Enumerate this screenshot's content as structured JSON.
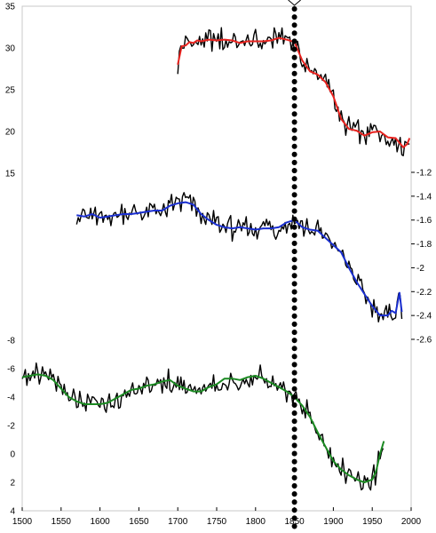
{
  "chart_data": [
    {
      "type": "line",
      "title": "",
      "xlabel": "",
      "ylabel": "",
      "xlim": [
        1500,
        2000
      ],
      "ylim": [
        15,
        35
      ],
      "y_axis_side": "left",
      "y_ticks": [
        15,
        20,
        25,
        30,
        35
      ],
      "y_tick_labels": [
        "15",
        "20",
        "25",
        "30",
        "35"
      ],
      "color": "#e8231f",
      "series": [
        {
          "values": [
            [
              1700,
              28.0
            ],
            [
              1705,
              30.2
            ],
            [
              1710,
              30.3
            ],
            [
              1715,
              30.7
            ],
            [
              1720,
              30.6
            ],
            [
              1725,
              30.9
            ],
            [
              1730,
              30.8
            ],
            [
              1740,
              31.0
            ],
            [
              1750,
              30.9
            ],
            [
              1760,
              31.0
            ],
            [
              1770,
              30.9
            ],
            [
              1780,
              30.6
            ],
            [
              1790,
              30.8
            ],
            [
              1800,
              30.8
            ],
            [
              1810,
              30.8
            ],
            [
              1820,
              30.9
            ],
            [
              1830,
              31.2
            ],
            [
              1840,
              31.0
            ],
            [
              1850,
              30.7
            ],
            [
              1860,
              28.5
            ],
            [
              1870,
              27.2
            ],
            [
              1880,
              26.8
            ],
            [
              1890,
              25.9
            ],
            [
              1900,
              24.2
            ],
            [
              1910,
              21.5
            ],
            [
              1920,
              20.3
            ],
            [
              1930,
              20.1
            ],
            [
              1940,
              19.5
            ],
            [
              1950,
              19.9
            ],
            [
              1960,
              20.0
            ],
            [
              1970,
              19.3
            ],
            [
              1980,
              19.2
            ],
            [
              1990,
              18.1
            ],
            [
              1995,
              18.5
            ],
            [
              1998,
              19.2
            ]
          ]
        }
      ]
    },
    {
      "type": "line",
      "title": "",
      "xlabel": "",
      "ylabel": "",
      "xlim": [
        1500,
        2000
      ],
      "ylim": [
        -2.6,
        -1.2
      ],
      "y_axis_side": "right",
      "y_ticks": [
        -1.2,
        -1.4,
        -1.6,
        -1.8,
        -2.0,
        -2.2,
        -2.4,
        -2.6
      ],
      "y_tick_labels": [
        "-1.2",
        "-1.4",
        "-1.6",
        "-1.8",
        "-2",
        "-2.2",
        "-2.4",
        "-2.6"
      ],
      "color": "#1a2fd0",
      "series": [
        {
          "values": [
            [
              1570,
              -1.56
            ],
            [
              1580,
              -1.57
            ],
            [
              1590,
              -1.55
            ],
            [
              1600,
              -1.58
            ],
            [
              1610,
              -1.57
            ],
            [
              1620,
              -1.56
            ],
            [
              1630,
              -1.55
            ],
            [
              1640,
              -1.55
            ],
            [
              1650,
              -1.54
            ],
            [
              1660,
              -1.53
            ],
            [
              1670,
              -1.52
            ],
            [
              1680,
              -1.52
            ],
            [
              1690,
              -1.48
            ],
            [
              1700,
              -1.46
            ],
            [
              1710,
              -1.45
            ],
            [
              1720,
              -1.47
            ],
            [
              1730,
              -1.55
            ],
            [
              1740,
              -1.6
            ],
            [
              1750,
              -1.64
            ],
            [
              1760,
              -1.66
            ],
            [
              1770,
              -1.67
            ],
            [
              1780,
              -1.66
            ],
            [
              1790,
              -1.67
            ],
            [
              1800,
              -1.68
            ],
            [
              1810,
              -1.67
            ],
            [
              1820,
              -1.67
            ],
            [
              1830,
              -1.66
            ],
            [
              1840,
              -1.62
            ],
            [
              1850,
              -1.6
            ],
            [
              1860,
              -1.66
            ],
            [
              1870,
              -1.68
            ],
            [
              1880,
              -1.69
            ],
            [
              1890,
              -1.75
            ],
            [
              1900,
              -1.81
            ],
            [
              1910,
              -1.87
            ],
            [
              1920,
              -2.0
            ],
            [
              1930,
              -2.12
            ],
            [
              1940,
              -2.22
            ],
            [
              1950,
              -2.32
            ],
            [
              1960,
              -2.4
            ],
            [
              1970,
              -2.4
            ],
            [
              1975,
              -2.36
            ],
            [
              1980,
              -2.38
            ],
            [
              1985,
              -2.21
            ],
            [
              1988,
              -2.37
            ]
          ]
        }
      ]
    },
    {
      "type": "line",
      "title": "",
      "xlabel": "",
      "ylabel": "",
      "xlim": [
        1500,
        2000
      ],
      "ylim": [
        -8,
        4
      ],
      "y_axis_side": "left",
      "y_inverted": true,
      "y_ticks": [
        -8,
        -6,
        -4,
        -2,
        0,
        2,
        4
      ],
      "y_tick_labels": [
        "-8",
        "-6",
        "-4",
        "-2",
        "0",
        "2",
        "4"
      ],
      "color": "#1b8a22",
      "series": [
        {
          "values": [
            [
              1500,
              -5.4
            ],
            [
              1510,
              -5.5
            ],
            [
              1520,
              -5.6
            ],
            [
              1530,
              -5.5
            ],
            [
              1540,
              -5.2
            ],
            [
              1550,
              -4.6
            ],
            [
              1560,
              -4.0
            ],
            [
              1570,
              -3.7
            ],
            [
              1580,
              -3.5
            ],
            [
              1590,
              -3.5
            ],
            [
              1600,
              -3.5
            ],
            [
              1610,
              -3.6
            ],
            [
              1620,
              -3.9
            ],
            [
              1630,
              -4.2
            ],
            [
              1640,
              -4.5
            ],
            [
              1650,
              -4.6
            ],
            [
              1660,
              -4.8
            ],
            [
              1670,
              -4.9
            ],
            [
              1680,
              -5.1
            ],
            [
              1690,
              -5.2
            ],
            [
              1700,
              -4.8
            ],
            [
              1710,
              -4.6
            ],
            [
              1720,
              -4.4
            ],
            [
              1730,
              -4.4
            ],
            [
              1740,
              -4.7
            ],
            [
              1750,
              -4.9
            ],
            [
              1760,
              -5.3
            ],
            [
              1770,
              -5.3
            ],
            [
              1780,
              -5.2
            ],
            [
              1790,
              -5.4
            ],
            [
              1800,
              -5.5
            ],
            [
              1810,
              -5.3
            ],
            [
              1820,
              -5.0
            ],
            [
              1830,
              -4.7
            ],
            [
              1840,
              -4.4
            ],
            [
              1850,
              -4.0
            ],
            [
              1860,
              -3.4
            ],
            [
              1870,
              -2.6
            ],
            [
              1880,
              -1.5
            ],
            [
              1890,
              -0.5
            ],
            [
              1900,
              0.5
            ],
            [
              1910,
              1.1
            ],
            [
              1920,
              1.5
            ],
            [
              1930,
              1.8
            ],
            [
              1940,
              2.0
            ],
            [
              1950,
              1.8
            ],
            [
              1955,
              1.2
            ],
            [
              1960,
              0.0
            ],
            [
              1965,
              -0.9
            ]
          ]
        }
      ]
    }
  ],
  "x_axis": {
    "ticks": [
      1500,
      1550,
      1600,
      1650,
      1700,
      1750,
      1800,
      1850,
      1900,
      1950,
      2000
    ],
    "tick_labels": [
      "1500",
      "1550",
      "1600",
      "1650",
      "1700",
      "1750",
      "1800",
      "1850",
      "1900",
      "1950",
      "2000"
    ]
  },
  "annotations": {
    "vertical_marker_year": 1850,
    "vertical_marker_style": "dotted"
  },
  "colors": {
    "raw_series": "#000000",
    "frame": "#c8c8c8"
  }
}
